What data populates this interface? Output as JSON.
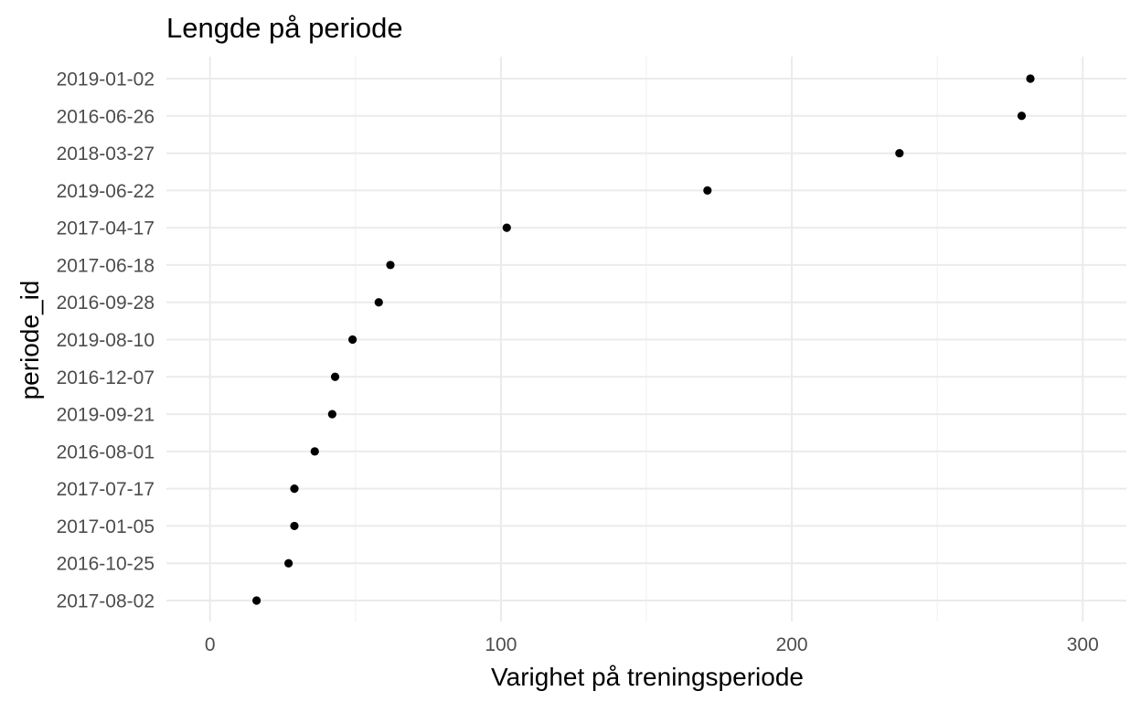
{
  "chart_data": {
    "type": "scatter",
    "title": "Lengde på periode",
    "xlabel": "Varighet på treningsperiode",
    "ylabel": "periode_id",
    "xlim": [
      -15,
      315
    ],
    "x_ticks": [
      0,
      100,
      200,
      300
    ],
    "x_minor_ticks": [
      50,
      150,
      250
    ],
    "grid": true,
    "legend": "none",
    "point_color": "#000000",
    "categories": [
      "2017-08-02",
      "2016-10-25",
      "2017-01-05",
      "2017-07-17",
      "2016-08-01",
      "2019-09-21",
      "2016-12-07",
      "2019-08-10",
      "2016-09-28",
      "2017-06-18",
      "2017-04-17",
      "2019-06-22",
      "2018-03-27",
      "2016-06-26",
      "2019-01-02"
    ],
    "values": [
      16,
      27,
      29,
      29,
      36,
      42,
      43,
      49,
      58,
      62,
      102,
      171,
      237,
      279,
      282
    ]
  }
}
